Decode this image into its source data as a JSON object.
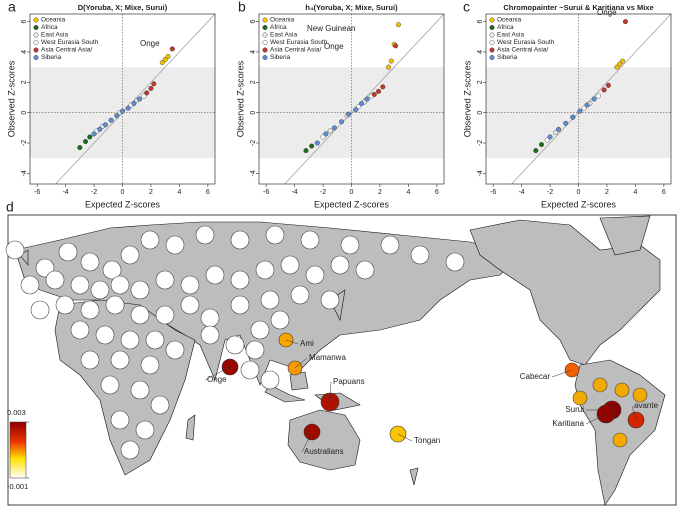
{
  "chart_data": [
    {
      "type": "scatter",
      "panel_label": "a",
      "title": "D(Yoruba, X; Mixe, Surui)",
      "x_label": "Expected Z-scores",
      "y_label": "Observed Z-scores",
      "xlim": [
        -6.5,
        6.5
      ],
      "ylim": [
        -4.7,
        6.5
      ],
      "xticks": [
        -6,
        -4,
        -2,
        0,
        2,
        4,
        6
      ],
      "yticks": [
        -4,
        -2,
        0,
        2,
        4,
        6
      ],
      "shaded_band": [
        -3,
        3
      ],
      "series": [
        {
          "name": "Oceania",
          "color": "#f2c200",
          "x": [
            2.8,
            3.0,
            3.2
          ],
          "values": [
            3.3,
            3.5,
            3.7
          ]
        },
        {
          "name": "Africa",
          "color": "#1e6b1e",
          "x": [
            -3.0,
            -2.6,
            -2.3
          ],
          "values": [
            -2.3,
            -1.9,
            -1.6
          ]
        },
        {
          "name": "East Asia",
          "color": "#e8e8e8",
          "x": [
            -1.4,
            -0.2,
            1.0
          ],
          "values": [
            -0.9,
            0.0,
            0.8
          ]
        },
        {
          "name": "West Eurasia South",
          "color": "#ffffff",
          "x": [
            -1.8,
            0.6,
            1.5
          ],
          "values": [
            -1.2,
            0.5,
            1.1
          ]
        },
        {
          "name": "Asia Central Asia/",
          "color": "#c0392b",
          "x": [
            1.7,
            2.0,
            2.2,
            3.5
          ],
          "values": [
            1.3,
            1.6,
            1.9,
            4.2
          ]
        },
        {
          "name": "Siberia",
          "color": "#5b8fd0",
          "x": [
            -2.0,
            -1.6,
            -1.2,
            -0.8,
            -0.4,
            0,
            0.4,
            0.8,
            1.2
          ],
          "values": [
            -1.4,
            -1.1,
            -0.8,
            -0.5,
            -0.2,
            0.1,
            0.3,
            0.6,
            0.9
          ]
        }
      ],
      "annotations": [
        "Onge"
      ]
    },
    {
      "type": "scatter",
      "panel_label": "b",
      "title": "h₄(Yoruba, X; Mixe, Surui)",
      "x_label": "Expected Z-scores",
      "y_label": "Observed Z-scores",
      "xlim": [
        -6.5,
        6.5
      ],
      "ylim": [
        -4.7,
        6.5
      ],
      "xticks": [
        -6,
        -4,
        -2,
        0,
        2,
        4,
        6
      ],
      "yticks": [
        -4,
        -2,
        0,
        2,
        4,
        6
      ],
      "shaded_band": [
        -3,
        3
      ],
      "series": [
        {
          "name": "Oceania",
          "color": "#f2c200",
          "x": [
            2.6,
            2.8,
            3.0,
            3.3
          ],
          "values": [
            3.0,
            3.4,
            4.5,
            5.8
          ]
        },
        {
          "name": "Africa",
          "color": "#1e6b1e",
          "x": [
            -3.2,
            -2.8
          ],
          "values": [
            -2.5,
            -2.2
          ]
        },
        {
          "name": "East Asia",
          "color": "#e8e8e8",
          "x": [
            -1.5,
            -0.3,
            0.9
          ],
          "values": [
            -1.2,
            -0.2,
            0.7
          ]
        },
        {
          "name": "West Eurasia South",
          "color": "#ffffff",
          "x": [
            -2.0,
            0.5,
            1.4
          ],
          "values": [
            -1.6,
            0.4,
            1.1
          ]
        },
        {
          "name": "Asia Central Asia/",
          "color": "#c0392b",
          "x": [
            1.6,
            1.9,
            2.2,
            3.1
          ],
          "values": [
            1.2,
            1.4,
            1.7,
            4.4
          ]
        },
        {
          "name": "Siberia",
          "color": "#5b8fd0",
          "x": [
            -2.4,
            -1.8,
            -1.2,
            -0.7,
            -0.2,
            0.3,
            0.7,
            1.1
          ],
          "values": [
            -2.0,
            -1.4,
            -1.0,
            -0.6,
            -0.1,
            0.2,
            0.6,
            0.9
          ]
        }
      ],
      "annotations": [
        "New Guinean",
        "Onge"
      ]
    },
    {
      "type": "scatter",
      "panel_label": "c",
      "title": "Chromopainter ~Surui & Karitiana vs Mixe",
      "x_label": "Expected Z-scores",
      "y_label": "Observed Z-scores",
      "xlim": [
        -6.5,
        6.5
      ],
      "ylim": [
        -4.7,
        6.5
      ],
      "xticks": [
        -6,
        -4,
        -2,
        0,
        2,
        4,
        6
      ],
      "yticks": [
        -4,
        -2,
        0,
        2,
        4,
        6
      ],
      "shaded_band": [
        -3,
        3
      ],
      "series": [
        {
          "name": "Oceania",
          "color": "#f2c200",
          "x": [
            2.7,
            2.9,
            3.1
          ],
          "values": [
            3.0,
            3.2,
            3.4
          ]
        },
        {
          "name": "Africa",
          "color": "#1e6b1e",
          "x": [
            -3.0,
            -2.6
          ],
          "values": [
            -2.5,
            -2.1
          ]
        },
        {
          "name": "East Asia",
          "color": "#e8e8e8",
          "x": [
            -1.6,
            -0.4,
            0.8
          ],
          "values": [
            -1.3,
            -0.3,
            0.6
          ]
        },
        {
          "name": "West Eurasia South",
          "color": "#ffffff",
          "x": [
            -2.2,
            0.4,
            1.4
          ],
          "values": [
            -1.8,
            0.3,
            1.1
          ]
        },
        {
          "name": "Asia Central Asia/",
          "color": "#c0392b",
          "x": [
            1.8,
            2.1,
            3.3
          ],
          "values": [
            1.5,
            1.8,
            6.0
          ]
        },
        {
          "name": "Siberia",
          "color": "#5b8fd0",
          "x": [
            -2.0,
            -1.4,
            -0.9,
            -0.4,
            0.1,
            0.6,
            1.1
          ],
          "values": [
            -1.6,
            -1.1,
            -0.7,
            -0.3,
            0.1,
            0.5,
            0.9
          ]
        }
      ],
      "annotations": [
        "Onge"
      ]
    },
    {
      "type": "map",
      "panel_label": "d",
      "colorbar": {
        "lim": [
          -0.001,
          0.003
        ],
        "ticks": [
          0.003,
          -0.001
        ]
      },
      "points": [
        {
          "label": "Onge",
          "value": 0.0028
        },
        {
          "label": "Ami",
          "value": 0.0008
        },
        {
          "label": "Mamanwa",
          "value": 0.0009
        },
        {
          "label": "Papuans",
          "value": 0.0025
        },
        {
          "label": "Australians",
          "value": 0.0027
        },
        {
          "label": "Tongan",
          "value": 0.0006
        },
        {
          "label": "Cabecar",
          "value": 0.0013
        },
        {
          "label": "avante",
          "value": 0.002
        },
        {
          "label": "Surui",
          "value": 0.003
        },
        {
          "label": "Karitiana",
          "value": 0.0029
        }
      ]
    }
  ]
}
